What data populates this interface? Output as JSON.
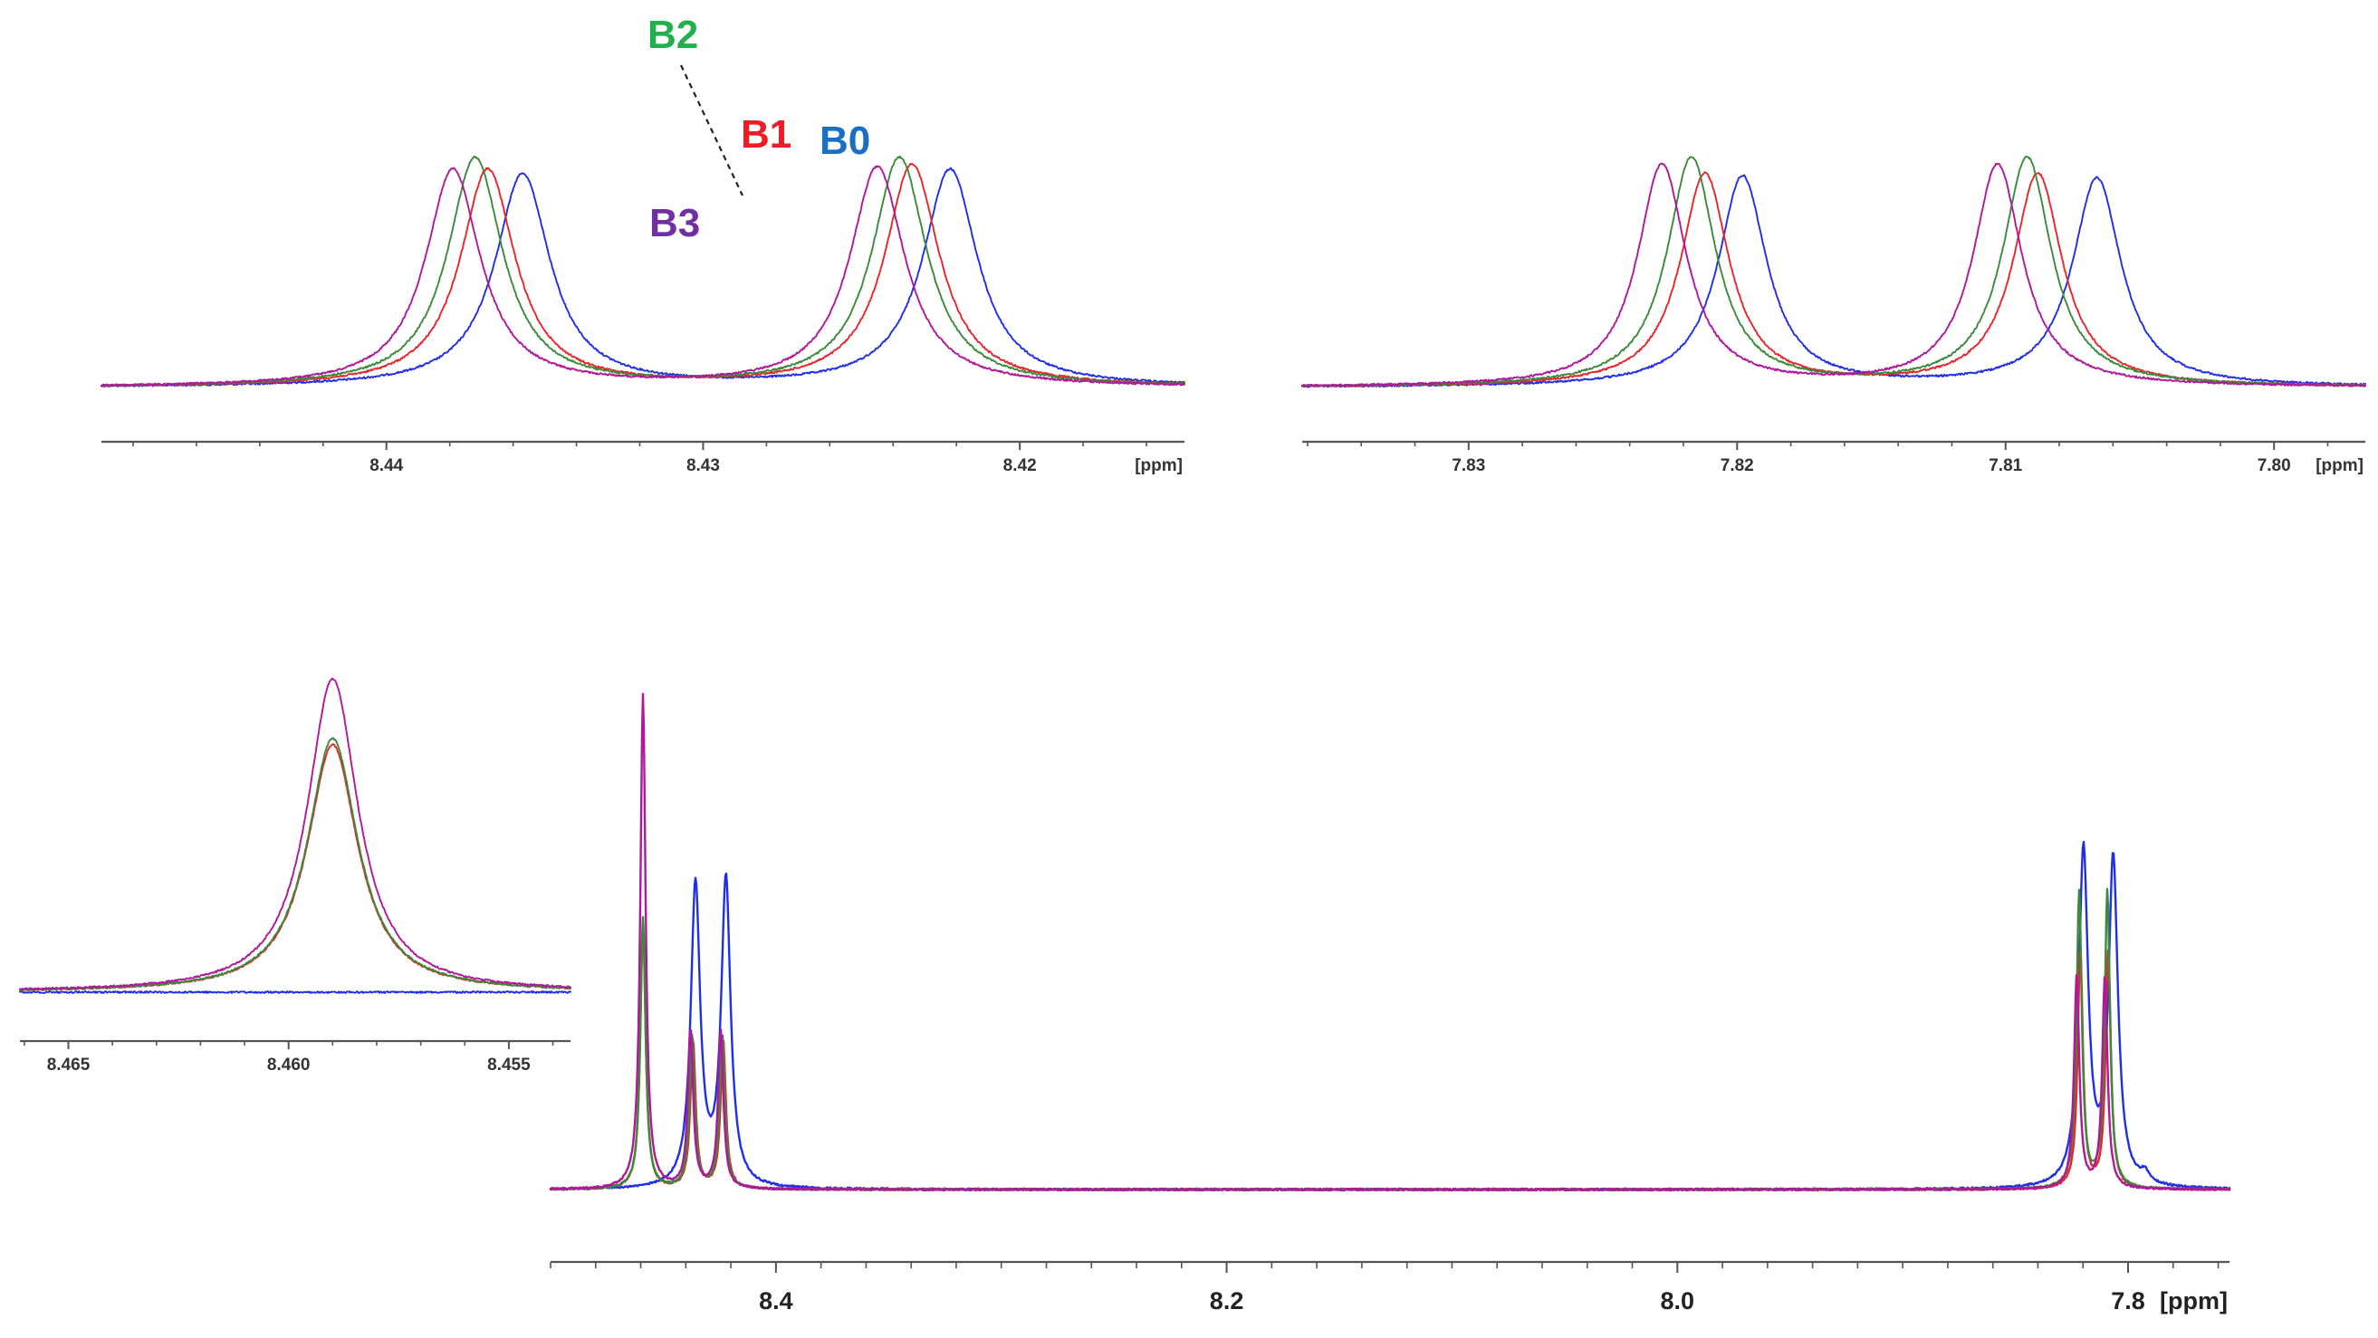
{
  "colors": {
    "B0": "#1f2ee8",
    "B1": "#e8262a",
    "B2": "#3c8a3c",
    "B3": "#b0189a"
  },
  "label_colors": {
    "B0": "#1a6fc4",
    "B1": "#ee1c25",
    "B2": "#22b04c",
    "B3": "#7030a0"
  },
  "chart_data": [
    {
      "id": "zoom_8_43",
      "type": "line",
      "title": "",
      "xlabel": "[ppm]",
      "ylabel": "",
      "x_reversed": true,
      "xlim": [
        8.449,
        8.4148
      ],
      "ylim": [
        -0.02,
        1.15
      ],
      "major_ticks": [
        8.44,
        8.43,
        8.42,
        8.41
      ],
      "tick_labels": [
        "8.44",
        "8.43",
        "8.42",
        "[ppm]"
      ],
      "minor_step": 0.002,
      "series": [
        {
          "name": "B0",
          "peaks": [
            {
              "x": 8.4357,
              "h": 0.93
            },
            {
              "x": 8.4222,
              "h": 0.95
            }
          ],
          "width": 0.00105
        },
        {
          "name": "B1",
          "peaks": [
            {
              "x": 8.4368,
              "h": 0.95
            },
            {
              "x": 8.4234,
              "h": 0.97
            }
          ],
          "width": 0.00105
        },
        {
          "name": "B2",
          "peaks": [
            {
              "x": 8.4372,
              "h": 1.0
            },
            {
              "x": 8.4238,
              "h": 1.0
            }
          ],
          "width": 0.00105
        },
        {
          "name": "B3",
          "peaks": [
            {
              "x": 8.4379,
              "h": 0.95
            },
            {
              "x": 8.4245,
              "h": 0.96
            }
          ],
          "width": 0.00105
        }
      ],
      "annotations": [
        {
          "text": "B2",
          "series": "B2"
        },
        {
          "text": "B1",
          "series": "B1"
        },
        {
          "text": "B0",
          "series": "B0"
        },
        {
          "text": "B3",
          "series": "B3"
        }
      ]
    },
    {
      "id": "zoom_7_81",
      "type": "line",
      "title": "",
      "xlabel": "[ppm]",
      "ylabel": "",
      "x_reversed": true,
      "xlim": [
        7.8362,
        7.7966
      ],
      "ylim": [
        -0.02,
        1.15
      ],
      "major_ticks": [
        7.83,
        7.82,
        7.81,
        7.8
      ],
      "tick_labels": [
        "7.83",
        "7.82",
        "7.81",
        "7.80"
      ],
      "minor_step": 0.002,
      "series": [
        {
          "name": "B0",
          "peaks": [
            {
              "x": 7.8198,
              "h": 0.92
            },
            {
              "x": 7.8066,
              "h": 0.91
            }
          ],
          "width": 0.0011
        },
        {
          "name": "B1",
          "peaks": [
            {
              "x": 7.8212,
              "h": 0.93
            },
            {
              "x": 7.8088,
              "h": 0.93
            }
          ],
          "width": 0.0011
        },
        {
          "name": "B2",
          "peaks": [
            {
              "x": 7.8217,
              "h": 1.0
            },
            {
              "x": 7.8092,
              "h": 1.0
            }
          ],
          "width": 0.0011
        },
        {
          "name": "B3",
          "peaks": [
            {
              "x": 7.8228,
              "h": 0.97
            },
            {
              "x": 7.8103,
              "h": 0.97
            }
          ],
          "width": 0.0011
        }
      ]
    },
    {
      "id": "zoom_8_459",
      "type": "line",
      "title": "",
      "xlabel": "",
      "ylabel": "",
      "x_reversed": true,
      "xlim": [
        8.4661,
        8.4536
      ],
      "ylim": [
        -0.02,
        1.05
      ],
      "major_ticks": [
        8.465,
        8.46,
        8.455
      ],
      "tick_labels": [
        "8.465",
        "8.460",
        "8.455"
      ],
      "minor_step": 0.001,
      "series": [
        {
          "name": "B0",
          "peaks": [],
          "width": 0.0007
        },
        {
          "name": "B1",
          "peaks": [
            {
              "x": 8.459,
              "h": 0.79
            }
          ],
          "width": 0.0007
        },
        {
          "name": "B2",
          "peaks": [
            {
              "x": 8.459,
              "h": 0.81
            }
          ],
          "width": 0.0007
        },
        {
          "name": "B3",
          "peaks": [
            {
              "x": 8.459,
              "h": 1.0
            }
          ],
          "width": 0.0007
        }
      ]
    },
    {
      "id": "full_spectrum",
      "type": "line",
      "title": "",
      "xlabel": "[ppm]",
      "ylabel": "",
      "x_reversed": true,
      "xlim": [
        8.5,
        7.755
      ],
      "ylim": [
        -0.02,
        1.03
      ],
      "major_ticks": [
        8.4,
        8.2,
        8.0,
        7.8
      ],
      "tick_labels": [
        "8.4",
        "8.2",
        "8.0",
        "7.8"
      ],
      "minor_step": 0.02,
      "series": [
        {
          "name": "B0",
          "peaks": [
            {
              "x": 8.4357,
              "h": 0.61
            },
            {
              "x": 8.4222,
              "h": 0.62
            },
            {
              "x": 7.8198,
              "h": 0.68
            },
            {
              "x": 7.8066,
              "h": 0.66
            },
            {
              "x": 7.7925,
              "h": 0.02
            }
          ],
          "width": 0.0025
        },
        {
          "name": "B1",
          "peaks": [
            {
              "x": 8.459,
              "h": 0.54
            },
            {
              "x": 8.4368,
              "h": 0.3
            },
            {
              "x": 8.4234,
              "h": 0.3
            },
            {
              "x": 7.8212,
              "h": 0.48
            },
            {
              "x": 7.8088,
              "h": 0.48
            }
          ],
          "width": 0.0014
        },
        {
          "name": "B2",
          "peaks": [
            {
              "x": 8.459,
              "h": 0.55
            },
            {
              "x": 8.4372,
              "h": 0.31
            },
            {
              "x": 8.4238,
              "h": 0.31
            },
            {
              "x": 7.8217,
              "h": 0.6
            },
            {
              "x": 7.8092,
              "h": 0.6
            }
          ],
          "width": 0.0014
        },
        {
          "name": "B3",
          "peaks": [
            {
              "x": 8.459,
              "h": 1.0
            },
            {
              "x": 8.4379,
              "h": 0.32
            },
            {
              "x": 8.4245,
              "h": 0.32
            },
            {
              "x": 7.8228,
              "h": 0.43
            },
            {
              "x": 7.8103,
              "h": 0.43
            }
          ],
          "width": 0.0014
        }
      ]
    }
  ]
}
